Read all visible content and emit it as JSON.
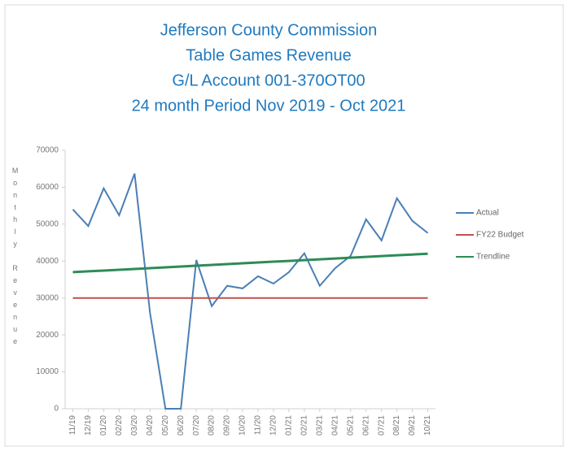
{
  "chart_data": {
    "type": "line",
    "title": [
      "Jefferson County Commission",
      "Table Games Revenue",
      "G/L Account 001-370OT00",
      "24 month Period Nov 2019 - Oct 2021"
    ],
    "y_label": "Monthly Revenue",
    "categories": [
      "11/19",
      "12/19",
      "01/20",
      "02/20",
      "03/20",
      "04/20",
      "05/20",
      "06/20",
      "07/20",
      "08/20",
      "09/20",
      "10/20",
      "11/20",
      "12/20",
      "01/21",
      "02/21",
      "03/21",
      "04/21",
      "05/21",
      "06/21",
      "07/21",
      "08/21",
      "09/21",
      "10/21"
    ],
    "series": [
      {
        "name": "Actual",
        "color": "#4a7fb5",
        "values": [
          54000,
          49500,
          59700,
          52400,
          63700,
          26000,
          0,
          0,
          40300,
          27800,
          33300,
          32600,
          35900,
          33900,
          37000,
          42100,
          33300,
          38100,
          41400,
          51300,
          45600,
          57000,
          50900,
          47600
        ]
      },
      {
        "name": "FY22 Budget",
        "color": "#c0504d",
        "values": [
          30000,
          30000,
          30000,
          30000,
          30000,
          30000,
          30000,
          30000,
          30000,
          30000,
          30000,
          30000,
          30000,
          30000,
          30000,
          30000,
          30000,
          30000,
          30000,
          30000,
          30000,
          30000,
          30000,
          30000
        ]
      },
      {
        "name": "Trendline",
        "color": "#2e8b57",
        "values": [
          37000,
          37220,
          37430,
          37650,
          37870,
          38090,
          38300,
          38520,
          38740,
          38960,
          39170,
          39390,
          39610,
          39830,
          40040,
          40260,
          40480,
          40700,
          40910,
          41130,
          41350,
          41570,
          41780,
          42000
        ]
      }
    ],
    "ylim": [
      0,
      70000
    ],
    "yticks": [
      0,
      10000,
      20000,
      30000,
      40000,
      50000,
      60000,
      70000
    ],
    "grid": false,
    "legend": "right"
  }
}
